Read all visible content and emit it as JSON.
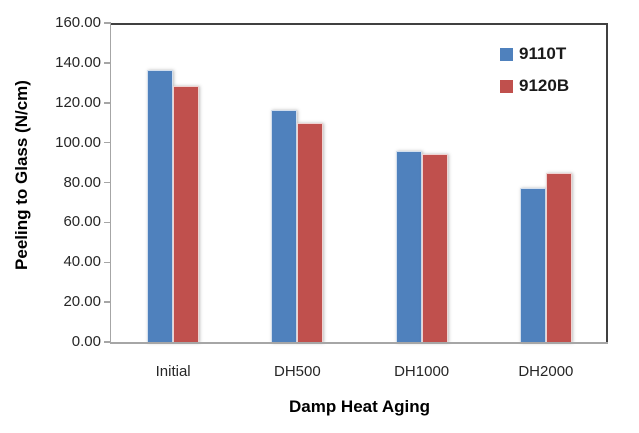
{
  "chart_data": {
    "type": "bar",
    "title": "",
    "xlabel": "Damp Heat Aging",
    "ylabel": "Peeling to Glass (N/cm)",
    "categories": [
      "Initial",
      "DH500",
      "DH1000",
      "DH2000"
    ],
    "series": [
      {
        "name": "9110T",
        "color": "#4F81BD",
        "values": [
          136.5,
          116.5,
          96.0,
          77.0
        ]
      },
      {
        "name": "9120B",
        "color": "#C0504D",
        "values": [
          128.5,
          110.0,
          94.5,
          85.0
        ]
      }
    ],
    "ylim": [
      0,
      160
    ],
    "ytick_step": 20,
    "ytick_labels": [
      "160.00",
      "140.00",
      "120.00",
      "100.00",
      "80.00",
      "60.00",
      "40.00",
      "20.00",
      "0.00"
    ],
    "grid": false,
    "legend_position": "top-right",
    "plot_border_color": "#404040",
    "axis_line_color": "#a6a6a6",
    "tick_label_color": "#262626"
  }
}
